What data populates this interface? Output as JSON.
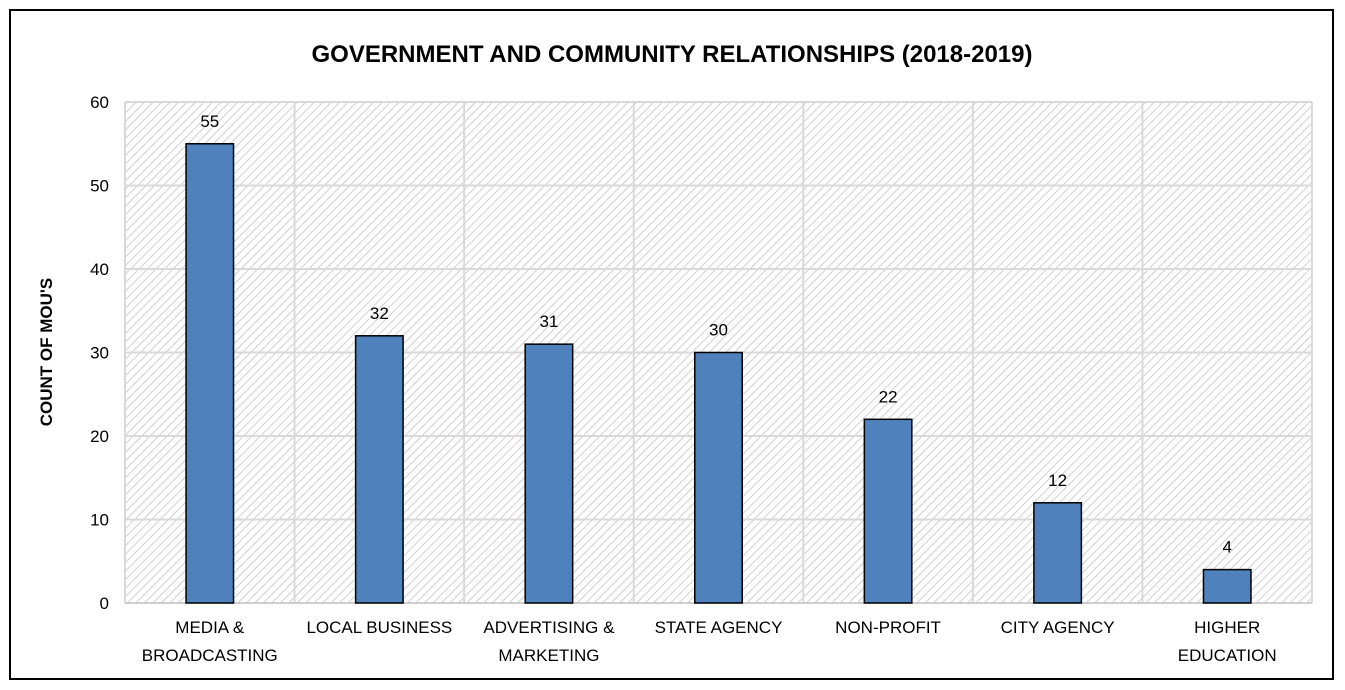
{
  "chart_data": {
    "type": "bar",
    "title": "GOVERNMENT AND COMMUNITY RELATIONSHIPS (2018-2019)",
    "xlabel": "",
    "ylabel": "COUNT OF MOU'S",
    "categories": [
      [
        "MEDIA &",
        "BROADCASTING"
      ],
      [
        "LOCAL BUSINESS"
      ],
      [
        "ADVERTISING &",
        "MARKETING"
      ],
      [
        "STATE AGENCY"
      ],
      [
        "NON-PROFIT"
      ],
      [
        "CITY AGENCY"
      ],
      [
        "HIGHER",
        "EDUCATION"
      ]
    ],
    "values": [
      55,
      32,
      31,
      30,
      22,
      12,
      4
    ],
    "ylim": [
      0,
      60
    ],
    "yticks": [
      0,
      10,
      20,
      30,
      40,
      50,
      60
    ],
    "grid": true,
    "legend": "none",
    "colors": {
      "bar": "#4F81BD",
      "bar_edge": "#000000",
      "grid": "#d9d9d9",
      "hatch": "#d4d4d4"
    }
  }
}
